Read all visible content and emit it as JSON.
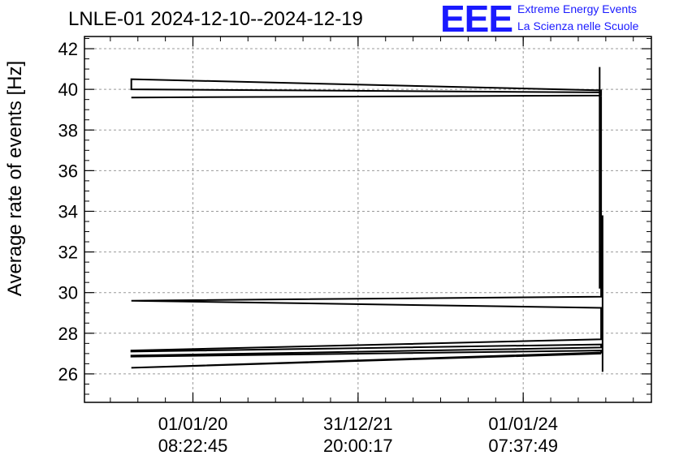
{
  "title": "LNLE-01 2024-12-10--2024-12-19",
  "logo": {
    "mark": "EEE",
    "line1": "Extreme Energy Events",
    "line2": "La Scienza nelle Scuole",
    "color": "#1a1aff"
  },
  "chart_data": {
    "type": "line",
    "title": "LNLE-01 2024-12-10--2024-12-19",
    "xlabel": "",
    "ylabel": "Average rate of events [Hz]",
    "ylim": [
      24.6,
      42.6
    ],
    "yticks": [
      26,
      28,
      30,
      32,
      34,
      36,
      38,
      40,
      42
    ],
    "xticks": [
      {
        "x": 0.22,
        "date": "01/01/20",
        "time": "08:22:45"
      },
      {
        "x": 0.555,
        "date": "31/12/21",
        "time": "20:00:17"
      },
      {
        "x": 0.89,
        "date": "01/01/24",
        "time": "07:37:49"
      }
    ],
    "xlim": [
      0,
      1.15
    ],
    "grid": true,
    "series": [
      {
        "color": "#000000",
        "x": [
          0.095,
          1.048,
          1.048,
          0.095,
          0.095,
          1.048,
          1.048,
          0.095,
          0.095,
          1.048,
          1.048,
          0.095,
          0.095,
          1.048,
          1.048,
          0.095,
          0.095,
          1.048,
          1.048,
          0.095,
          0.095,
          1.048
        ],
        "y": [
          39.6,
          39.7,
          39.95,
          40.5,
          40.0,
          39.85,
          29.8,
          29.6,
          29.6,
          29.25,
          27.7,
          27.15,
          27.1,
          27.45,
          27.3,
          26.9,
          26.85,
          27.15,
          27.05,
          26.3,
          26.3,
          27.0
        ]
      },
      {
        "color": "#000000",
        "x": [
          1.045,
          1.045,
          1.051,
          1.051
        ],
        "y": [
          41.1,
          30.2,
          33.8,
          26.1
        ]
      }
    ]
  }
}
